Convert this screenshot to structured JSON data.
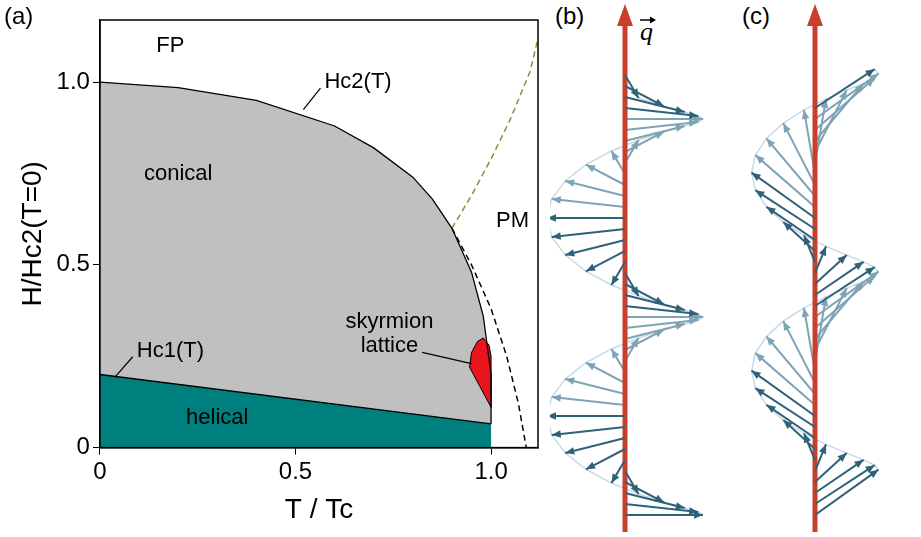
{
  "chart_data": {
    "type": "line",
    "panel_label": "(a)",
    "x_label": "T / Tc",
    "y_label": "H/Hc2(T=0)",
    "xlim": [
      0,
      1.12
    ],
    "ylim": [
      0,
      1.17
    ],
    "xticks": [
      0,
      0.5,
      {
        "value": 1,
        "label": "1.0"
      }
    ],
    "yticks": [
      0,
      0.5,
      {
        "value": 1,
        "label": "1.0"
      }
    ],
    "grid": false,
    "series": [
      {
        "type": "area",
        "color": "#c0c0c0",
        "x": [
          0,
          0.2,
          0.4,
          0.6,
          0.7,
          0.8,
          0.85,
          0.9,
          0.95,
          0.98,
          1.0,
          1.0,
          1.0,
          0
        ],
        "values": [
          1.0,
          0.985,
          0.95,
          0.88,
          0.82,
          0.74,
          0.68,
          0.6,
          0.48,
          0.36,
          0.2,
          0.065,
          0,
          0
        ]
      },
      {
        "type": "area",
        "color": "#007f7f",
        "x": [
          0,
          0,
          1.0,
          1.0
        ],
        "values": [
          0,
          0.2,
          0.065,
          0
        ]
      },
      {
        "type": "area",
        "color": "#e8141e",
        "x": [
          0.945,
          0.95,
          0.965,
          0.98,
          0.995,
          1.0,
          1.0,
          0.985,
          0.97,
          0.955,
          0.945
        ],
        "values": [
          0.22,
          0.26,
          0.29,
          0.3,
          0.28,
          0.25,
          0.11,
          0.14,
          0.17,
          0.2,
          0.22
        ]
      },
      {
        "type": "line",
        "color": "#000000",
        "line_style": "solid",
        "x": [
          0,
          0.2,
          0.4,
          0.6,
          0.7,
          0.8,
          0.85,
          0.9,
          0.95,
          0.98,
          1.0,
          1.0
        ],
        "values": [
          1.0,
          0.985,
          0.95,
          0.88,
          0.82,
          0.74,
          0.68,
          0.6,
          0.48,
          0.36,
          0.2,
          0.065
        ]
      },
      {
        "type": "line",
        "color": "#000000",
        "line_style": "solid",
        "x": [
          0,
          1.0
        ],
        "values": [
          0.2,
          0.065
        ]
      },
      {
        "type": "line",
        "color": "#8b8b3a",
        "line_style": "dashed",
        "x": [
          0.9,
          0.95,
          1.0,
          1.05,
          1.1,
          1.12
        ],
        "values": [
          0.6,
          0.69,
          0.79,
          0.9,
          1.03,
          1.12
        ]
      },
      {
        "type": "line",
        "color": "#000000",
        "line_style": "dashed",
        "x": [
          0.9,
          0.95,
          1.0,
          1.04,
          1.07,
          1.09
        ],
        "values": [
          0.6,
          0.5,
          0.38,
          0.25,
          0.12,
          0
        ]
      }
    ],
    "annotations": [
      {
        "text": "FP",
        "x": 0.18,
        "y": 1.1
      },
      {
        "text": "PM",
        "x": 1.055,
        "y": 0.62
      },
      {
        "text": "conical",
        "x": 0.2,
        "y": 0.75
      },
      {
        "text": "helical",
        "x": 0.3,
        "y": 0.08
      },
      {
        "text": "skyrmion lattice",
        "x": 0.74,
        "y": 0.31,
        "points_to": [
          0.95,
          0.23
        ]
      },
      {
        "text": "Hc2(T)",
        "x": 0.66,
        "y": 1.0,
        "points_to": [
          0.52,
          0.925
        ]
      },
      {
        "text": "Hc1(T)",
        "x": 0.18,
        "y": 0.265,
        "points_to": [
          0.04,
          0.195
        ]
      }
    ]
  },
  "diagrams": {
    "panel_labels": [
      "(b)",
      "(c)"
    ],
    "vector_label": "q"
  }
}
